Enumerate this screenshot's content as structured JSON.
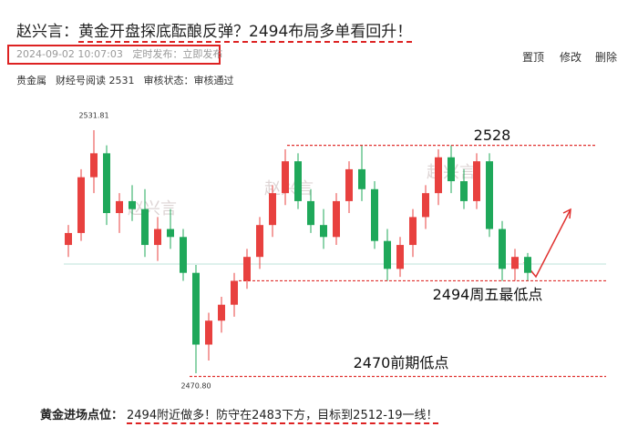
{
  "header": {
    "author_prefix": "赵兴言：",
    "title": "黄金开盘探底酝酿反弹？2494布局多单看回升！"
  },
  "meta": {
    "time": "2024-09-02 10:07:03",
    "publish": "定时发布：立即发布",
    "actions": [
      "置顶",
      "修改",
      "删除"
    ],
    "category": "贵金属",
    "reads": "财经号阅读 2531",
    "status": "审核状态：审核通过"
  },
  "chart_data": {
    "type": "candlestick",
    "watermark": "赵兴言",
    "up_color": "#e8413f",
    "down_color": "#1fa85a",
    "ylim": [
      2469.2,
      2533.4
    ],
    "high_label": {
      "value": 2531.81,
      "label": "2531.81"
    },
    "low_label": {
      "value": 2470.8,
      "label": "2470.80"
    },
    "ohlc": [
      [
        2503,
        2508,
        2500,
        2506
      ],
      [
        2506,
        2522,
        2504,
        2520
      ],
      [
        2520,
        2531.81,
        2516,
        2526
      ],
      [
        2526,
        2528,
        2508,
        2511
      ],
      [
        2511,
        2516,
        2506,
        2514
      ],
      [
        2514,
        2518,
        2509,
        2512
      ],
      [
        2512,
        2517,
        2500,
        2503
      ],
      [
        2503,
        2510,
        2499,
        2507
      ],
      [
        2507,
        2512,
        2502,
        2505
      ],
      [
        2505,
        2507,
        2494,
        2496
      ],
      [
        2496,
        2498,
        2470.8,
        2478
      ],
      [
        2478,
        2486,
        2474,
        2484
      ],
      [
        2484,
        2490,
        2481,
        2488
      ],
      [
        2488,
        2496,
        2485,
        2494
      ],
      [
        2494,
        2502,
        2492,
        2500
      ],
      [
        2500,
        2510,
        2497,
        2508
      ],
      [
        2508,
        2518,
        2505,
        2516
      ],
      [
        2516,
        2527,
        2513,
        2524
      ],
      [
        2524,
        2526,
        2512,
        2514
      ],
      [
        2514,
        2517,
        2506,
        2508
      ],
      [
        2508,
        2512,
        2502,
        2505
      ],
      [
        2505,
        2516,
        2503,
        2514
      ],
      [
        2514,
        2524,
        2511,
        2522
      ],
      [
        2522,
        2528,
        2514,
        2517
      ],
      [
        2517,
        2519,
        2502,
        2504
      ],
      [
        2504,
        2507,
        2494,
        2497
      ],
      [
        2497,
        2505,
        2495,
        2503
      ],
      [
        2503,
        2512,
        2500,
        2510
      ],
      [
        2510,
        2518,
        2507,
        2516
      ],
      [
        2516,
        2527,
        2513,
        2525
      ],
      [
        2525,
        2528,
        2516,
        2519
      ],
      [
        2519,
        2522,
        2512,
        2514
      ],
      [
        2514,
        2526,
        2512,
        2524
      ],
      [
        2524,
        2526,
        2505,
        2507
      ],
      [
        2507,
        2509,
        2494,
        2497
      ],
      [
        2497,
        2502,
        2494,
        2500
      ],
      [
        2500,
        2501,
        2494,
        2496
      ]
    ],
    "annotations": [
      {
        "value": 2528,
        "label": "2528"
      },
      {
        "value": 2494,
        "label": "2494周五最低点"
      },
      {
        "value": 2470,
        "label": "2470前期低点"
      }
    ]
  },
  "footer": {
    "label": "黄金进场点位：",
    "text": "2494附近做多！防守在2483下方，目标到2512-19一线！"
  }
}
